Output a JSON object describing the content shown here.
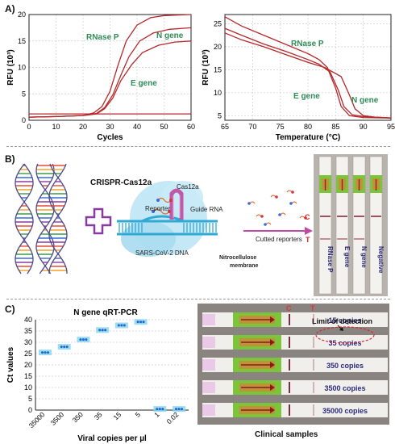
{
  "panels": {
    "a": "A)",
    "b": "B)",
    "c": "C)"
  },
  "chart_data": [
    {
      "type": "line",
      "title": "",
      "xlabel": "Cycles",
      "ylabel": "RFU (10³)",
      "xlim": [
        0,
        60
      ],
      "ylim": [
        0,
        20
      ],
      "xticks": [
        "0",
        "10",
        "20",
        "30",
        "40",
        "50",
        "60"
      ],
      "yticks": [
        "0",
        "5",
        "10",
        "15",
        "20"
      ],
      "grid": true,
      "annotations": [
        "RNase P",
        "N gene",
        "E gene"
      ],
      "series": [
        {
          "name": "RNase P",
          "x": [
            0,
            10,
            20,
            24,
            27,
            30,
            33,
            36,
            40,
            45,
            50,
            60
          ],
          "y": [
            0.6,
            0.7,
            0.9,
            1.4,
            2.6,
            5.5,
            10.5,
            15,
            18,
            19.4,
            19.8,
            20
          ]
        },
        {
          "name": "N gene",
          "x": [
            0,
            10,
            20,
            25,
            28,
            31,
            34,
            37,
            41,
            46,
            52,
            60
          ],
          "y": [
            0.6,
            0.7,
            0.9,
            1.3,
            2.4,
            4.8,
            8.5,
            12,
            15,
            16.5,
            17.2,
            17.5
          ]
        },
        {
          "name": "E gene",
          "x": [
            0,
            10,
            20,
            25,
            28,
            31,
            34,
            38,
            42,
            48,
            54,
            60
          ],
          "y": [
            0.6,
            0.7,
            0.9,
            1.2,
            2.2,
            4.2,
            7.5,
            10.5,
            12.8,
            14.2,
            14.8,
            15
          ]
        },
        {
          "name": "",
          "x": [
            0,
            20,
            40,
            60
          ],
          "y": [
            1.2,
            1.2,
            1.2,
            1.2
          ]
        }
      ]
    },
    {
      "type": "line",
      "title": "",
      "xlabel": "Temperature (°C)",
      "ylabel": "RFU (10³)",
      "xlim": [
        65,
        95
      ],
      "ylim": [
        4,
        27
      ],
      "xticks": [
        "65",
        "70",
        "75",
        "80",
        "85",
        "90",
        "95"
      ],
      "yticks": [
        "5",
        "10",
        "15",
        "20",
        "25"
      ],
      "grid": true,
      "annotations": [
        "RNase P",
        "E gene",
        "N gene"
      ],
      "series": [
        {
          "name": "RNase P",
          "x": [
            65,
            68,
            72,
            76,
            80,
            82,
            83.5,
            85,
            86,
            87.5,
            90,
            95
          ],
          "y": [
            26.5,
            24.5,
            22.5,
            20.5,
            18.5,
            17.2,
            15.5,
            11,
            7,
            5,
            4.6,
            4.5
          ]
        },
        {
          "name": "E gene",
          "x": [
            65,
            68,
            72,
            76,
            80,
            82,
            84,
            85.5,
            86.5,
            88,
            90,
            95
          ],
          "y": [
            24,
            22.5,
            20.6,
            19,
            17.2,
            16.2,
            14.5,
            10.5,
            7,
            5.2,
            4.8,
            4.5
          ]
        },
        {
          "name": "N gene",
          "x": [
            65,
            68,
            72,
            76,
            80,
            83,
            86,
            87.5,
            88.5,
            90,
            92,
            95
          ],
          "y": [
            23,
            21.5,
            20,
            18.3,
            16.6,
            15.5,
            13.5,
            9.5,
            6.5,
            5,
            4.7,
            4.5
          ]
        }
      ]
    },
    {
      "type": "scatter",
      "title": "N gene qRT-PCR",
      "xlabel": "Viral copies per µl",
      "ylabel": "Ct values",
      "categories": [
        "35000",
        "3500",
        "350",
        "35",
        "15",
        "5",
        "1",
        "0.02"
      ],
      "ylim": [
        0,
        40
      ],
      "yticks": [
        "0",
        "5",
        "10",
        "15",
        "20",
        "25",
        "30",
        "35",
        "40"
      ],
      "grid": true,
      "values": [
        25.5,
        28,
        31.2,
        35.4,
        37.5,
        39,
        0.5,
        0.5
      ]
    }
  ],
  "diagram": {
    "title": "CRISPR-Cas12a",
    "labels": {
      "cas12a": "Cas12a",
      "reporter": "Reporter",
      "guide_rna": "Guide RNA",
      "dna": "SARS-CoV-2 DNA",
      "membrane": "Nitrocellulose membrane",
      "cutted": "Cutted reporters",
      "c_line": "C",
      "t_line": "T"
    },
    "strips": [
      "RNase P",
      "E gene",
      "N gene",
      "Negative"
    ]
  },
  "photo": {
    "marks": {
      "c": "C",
      "t": "T"
    },
    "rows": [
      "15 copies",
      "35 copies",
      "350 copies",
      "3500 copies",
      "35000 copies"
    ],
    "annotation": "Limit of detection",
    "caption": "Clinical samples"
  },
  "colors": {
    "curve": "#b5282a",
    "label_green": "#2e8b57",
    "cyan": "#7fd6f0",
    "purple": "#8a3ba0",
    "navy": "#2a2a7a",
    "red": "#d8282b"
  }
}
